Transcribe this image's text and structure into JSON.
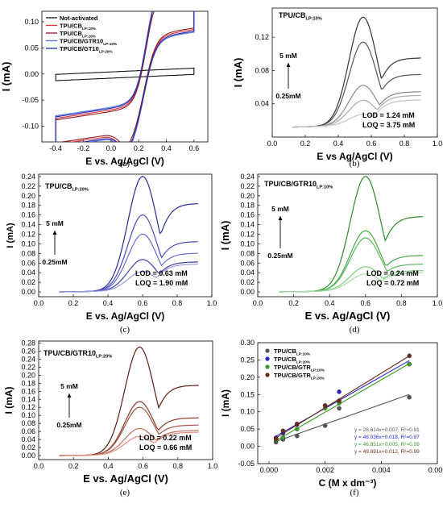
{
  "chart_data": [
    {
      "panel": "(a)",
      "type": "line",
      "xlabel": "E vs. Ag/AgCl (V)",
      "ylabel": "I (mA)",
      "xlim": [
        -0.5,
        0.7
      ],
      "ylim": [
        -0.13,
        0.12
      ],
      "xticks": [
        -0.4,
        -0.2,
        0.0,
        0.2,
        0.4,
        0.6
      ],
      "yticks": [
        -0.1,
        -0.05,
        0.0,
        0.05,
        0.1
      ],
      "legend_position": "top-left",
      "series": [
        {
          "name": "Not-activated",
          "sub": "",
          "color": "#111111",
          "amp": 0.012,
          "ox": 0.0,
          "red": 0.0
        },
        {
          "name": "TPU/CB",
          "sub": "LP:10%",
          "color": "#e8303a",
          "amp": 0.025,
          "ox": 0.14,
          "red": 0.12
        },
        {
          "name": "TPU/CB",
          "sub": "LP:20%",
          "color": "#8b1a1a",
          "amp": 0.022,
          "ox": 0.11,
          "red": 0.1
        },
        {
          "name": "TPU/CB/GTR10",
          "sub": "LP:10%",
          "color": "#5a6fe0",
          "amp": 0.03,
          "ox": 0.13,
          "red": 0.11
        },
        {
          "name": "TPU/CB/GT10",
          "sub": "LP:20%",
          "color": "#2030b0",
          "amp": 0.028,
          "ox": 0.12,
          "red": 0.1
        }
      ]
    },
    {
      "panel": "(b)",
      "type": "line",
      "title": "TPU/CB",
      "title_sub": "LP:10%",
      "xlabel": "E vs Ag/AgCl (V)",
      "ylabel": "I (mA)",
      "xlim": [
        0.0,
        1.0
      ],
      "ylim": [
        0.0,
        0.155
      ],
      "xticks": [
        0.0,
        0.2,
        0.4,
        0.6,
        0.8,
        1.0
      ],
      "yticks": [
        0.04,
        0.08,
        0.12
      ],
      "conc_high": "5 mM",
      "conc_low": "0.25mM",
      "lod": "LOD = 1.24 mM",
      "loq": "LOQ = 3.75 mM",
      "x_start": 0.12,
      "x_end": 0.9,
      "peak_x": 0.55,
      "baseline": 0.012,
      "peaks": [
        0.142,
        0.112,
        0.06,
        0.042,
        0.025
      ],
      "ends": [
        0.1,
        0.078,
        0.055,
        0.05,
        0.044
      ],
      "colors": [
        "#333333",
        "#555555",
        "#888888",
        "#aaaaaa",
        "#c4c4c4"
      ]
    },
    {
      "panel": "(c)",
      "type": "line",
      "title": "TPU/CB",
      "title_sub": "LP:20%",
      "xlabel": "E vs. Ag/AgCl (V)",
      "ylabel": "I (mA)",
      "xlim": [
        0.0,
        1.0
      ],
      "ylim": [
        -0.01,
        0.245
      ],
      "xticks": [
        0.0,
        0.2,
        0.4,
        0.6,
        0.8,
        1.0
      ],
      "yticks": [
        0.0,
        0.02,
        0.04,
        0.06,
        0.08,
        0.1,
        0.12,
        0.14,
        0.16,
        0.18,
        0.2,
        0.22,
        0.24
      ],
      "conc_high": "5 mM",
      "conc_low": "0.25mM",
      "lod": "LOD = 0.63 mM",
      "loq": "LOQ = 1.90 mM",
      "x_start": 0.12,
      "x_end": 0.92,
      "peak_x": 0.6,
      "baseline": 0.0,
      "peaks": [
        0.238,
        0.158,
        0.118,
        0.065,
        0.04
      ],
      "ends": [
        0.2,
        0.112,
        0.085,
        0.065,
        0.06
      ],
      "colors": [
        "#2a2a9c",
        "#4a4ab8",
        "#6a6ad0",
        "#4040a8",
        "#9a9ae0"
      ]
    },
    {
      "panel": "(d)",
      "type": "line",
      "title": "TPU/CB/GTR10",
      "title_sub": "LP:10%",
      "xlabel": "E vs. Ag/AgCl (V)",
      "ylabel": "I (mA)",
      "xlim": [
        0.0,
        1.0
      ],
      "ylim": [
        -0.01,
        0.245
      ],
      "xticks": [
        0.0,
        0.2,
        0.4,
        0.6,
        0.8,
        1.0
      ],
      "yticks": [
        0.0,
        0.02,
        0.04,
        0.06,
        0.08,
        0.1,
        0.12,
        0.14,
        0.16,
        0.18,
        0.2,
        0.22,
        0.24
      ],
      "conc_high": "5 mM",
      "conc_low": "0.25mM",
      "lod": "LOD = 0.24 mM",
      "loq": "LOQ = 0.72 mM",
      "x_start": 0.12,
      "x_end": 0.92,
      "peak_x": 0.6,
      "baseline": 0.0,
      "peaks": [
        0.238,
        0.125,
        0.11,
        0.05,
        0.035
      ],
      "ends": [
        0.17,
        0.08,
        0.06,
        0.045,
        0.04
      ],
      "colors": [
        "#2e8b2e",
        "#48a848",
        "#5cb85c",
        "#80cc80",
        "#a6e0a6"
      ]
    },
    {
      "panel": "(e)",
      "type": "line",
      "title": "TPU/CB/GTR10",
      "title_sub": "LP:20%",
      "xlabel": "E vs. Ag/AgCl (V)",
      "ylabel": "I (mA)",
      "xlim": [
        0.0,
        1.0
      ],
      "ylim": [
        -0.01,
        0.285
      ],
      "xticks": [
        0.0,
        0.2,
        0.4,
        0.6,
        0.8,
        1.0
      ],
      "yticks": [
        0.0,
        0.02,
        0.04,
        0.06,
        0.08,
        0.1,
        0.12,
        0.14,
        0.16,
        0.18,
        0.2,
        0.22,
        0.24,
        0.26,
        0.28
      ],
      "conc_high": "5 mM",
      "conc_low": "0.25mM",
      "lod": "LOD = 0.22 mM",
      "loq": "LOQ = 0.66 mM",
      "x_start": 0.12,
      "x_end": 0.92,
      "peak_x": 0.58,
      "baseline": 0.0,
      "peaks": [
        0.268,
        0.132,
        0.118,
        0.065,
        0.045
      ],
      "ends": [
        0.19,
        0.1,
        0.08,
        0.065,
        0.06
      ],
      "colors": [
        "#5a1f10",
        "#8b3a2a",
        "#a05545",
        "#c07060",
        "#e09080"
      ]
    },
    {
      "panel": "(f)",
      "type": "scatter",
      "xlabel": "C (M x dm⁻³)",
      "ylabel": "I (mA)",
      "xlim": [
        -0.0004,
        0.006
      ],
      "ylim": [
        -0.05,
        0.3
      ],
      "xticks": [
        0.0,
        0.002,
        0.004,
        0.006
      ],
      "xtick_labels": [
        "0.000",
        "0.002",
        "0.004",
        "0.006"
      ],
      "yticks": [
        -0.05,
        0.0,
        0.05,
        0.1,
        0.15,
        0.2,
        0.25,
        0.3
      ],
      "x": [
        0.00025,
        0.0005,
        0.001,
        0.002,
        0.0025,
        0.005
      ],
      "legend_position": "top-left",
      "series": [
        {
          "name": "TPU/CB",
          "sub": "LP:10%",
          "color": "#555555",
          "slope": 28.614,
          "intercept": 0.007,
          "equation": "y = 28.614x+0.007, R²=0.91",
          "values": [
            0.012,
            0.02,
            0.03,
            0.06,
            0.11,
            0.142
          ]
        },
        {
          "name": "TPU/CB",
          "sub": "LP:20%",
          "color": "#2323c8",
          "slope": 46.036,
          "intercept": 0.018,
          "equation": "y = 46.036x+0.018, R²=0.97",
          "values": [
            0.025,
            0.038,
            0.063,
            0.118,
            0.158,
            0.238
          ]
        },
        {
          "name": "TPU/CB/GTR",
          "sub": "LP:10%",
          "color": "#3a9a2a",
          "slope": 46.851,
          "intercept": 0.005,
          "equation": "y = 46.851x+0.005, R²=0.99",
          "values": [
            0.018,
            0.025,
            0.05,
            0.11,
            0.125,
            0.238
          ]
        },
        {
          "name": "TPU/CB/GTR",
          "sub": "LP:20%",
          "color": "#6b2a1a",
          "slope": 49.891,
          "intercept": 0.012,
          "equation": "y = 49.891x+0.012, R²=0.99",
          "values": [
            0.022,
            0.045,
            0.065,
            0.118,
            0.132,
            0.262
          ]
        }
      ]
    }
  ]
}
